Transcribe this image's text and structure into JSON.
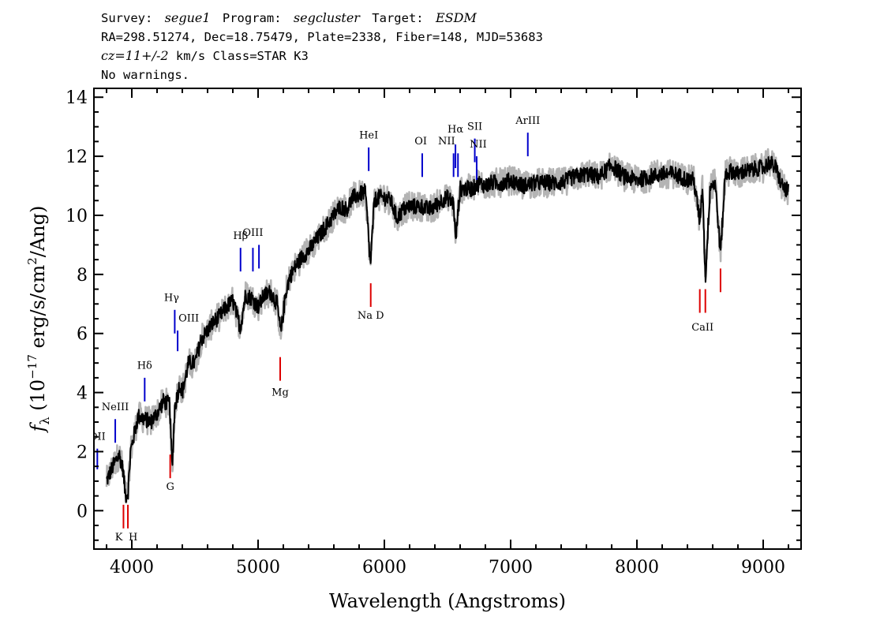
{
  "header": {
    "line1": {
      "survey_label": "Survey:",
      "survey_value": "segue1",
      "program_label": "Program:",
      "program_value": "segcluster",
      "target_label": "Target:",
      "target_value": "ESDM"
    },
    "line2": "RA=298.51274, Dec=18.75479, Plate=2338, Fiber=148, MJD=53683",
    "line3": {
      "cz_label": "cz=11+/-2",
      "rest": " km/s Class=STAR K3"
    },
    "line4": "No warnings."
  },
  "colors": {
    "spectrum": "#000000",
    "error_band": "#b4b4b4",
    "emission_line": "#0000cc",
    "absorption_line": "#dd0000"
  },
  "chart_data": {
    "type": "line",
    "xlabel": "Wavelength (Angstroms)",
    "ylabel": "f_λ (10^-17 erg/s/cm^2/Ang)",
    "ylabel_parts": {
      "f": "f",
      "sub": "λ",
      "pre": " (10",
      "exp1": "−17",
      "mid": " erg/s/cm",
      "exp2": "2",
      "post": "/Ang)"
    },
    "xlim": [
      3700,
      9300
    ],
    "ylim": [
      -1.3,
      14.3
    ],
    "x_ticks": [
      4000,
      5000,
      6000,
      7000,
      8000,
      9000
    ],
    "y_ticks": [
      0,
      2,
      4,
      6,
      8,
      10,
      12,
      14
    ],
    "grid": false,
    "legend": "none",
    "series": [
      {
        "x": [
          3800,
          3850,
          3900,
          3930,
          3950,
          3970,
          3990,
          4050,
          4100,
          4150,
          4200,
          4250,
          4300,
          4320,
          4340,
          4380,
          4400,
          4450,
          4500,
          4550,
          4600,
          4650,
          4700,
          4750,
          4800,
          4860,
          4900,
          4950,
          5000,
          5050,
          5100,
          5150,
          5180,
          5220,
          5250,
          5300,
          5350,
          5400,
          5450,
          5500,
          5550,
          5600,
          5650,
          5700,
          5750,
          5800,
          5850,
          5890,
          5920,
          5950,
          6000,
          6050,
          6100,
          6150,
          6200,
          6250,
          6300,
          6350,
          6400,
          6450,
          6500,
          6550,
          6563,
          6600,
          6650,
          6700,
          6750,
          6800,
          6850,
          6900,
          6950,
          7000,
          7050,
          7100,
          7200,
          7300,
          7400,
          7500,
          7600,
          7700,
          7800,
          7900,
          8000,
          8100,
          8200,
          8300,
          8400,
          8450,
          8498,
          8520,
          8542,
          8580,
          8620,
          8662,
          8700,
          8750,
          8800,
          8850,
          8900,
          8950,
          9000,
          9050,
          9100,
          9150,
          9200
        ],
        "values": [
          1.0,
          1.5,
          1.9,
          1.4,
          0.5,
          0.6,
          2.0,
          3.2,
          3.1,
          3.0,
          3.3,
          3.7,
          3.6,
          1.4,
          3.5,
          4.3,
          4.0,
          5.0,
          5.0,
          5.8,
          6.1,
          6.4,
          6.6,
          6.9,
          7.1,
          6.2,
          7.3,
          7.2,
          6.9,
          7.3,
          7.4,
          7.0,
          6.0,
          7.4,
          7.9,
          8.3,
          8.6,
          8.8,
          9.1,
          9.4,
          9.7,
          10.0,
          10.3,
          10.2,
          10.6,
          10.7,
          10.8,
          8.3,
          10.5,
          10.6,
          10.6,
          10.5,
          9.9,
          10.2,
          10.3,
          10.3,
          10.3,
          10.2,
          10.3,
          10.5,
          10.6,
          10.4,
          9.1,
          10.9,
          10.9,
          10.9,
          11.1,
          11.0,
          11.1,
          11.1,
          11.1,
          11.2,
          11.1,
          11.0,
          11.1,
          11.1,
          11.1,
          11.3,
          11.4,
          11.3,
          11.7,
          11.3,
          11.2,
          11.3,
          11.4,
          11.4,
          11.2,
          11.2,
          9.8,
          11.0,
          7.8,
          11.0,
          11.1,
          8.7,
          11.4,
          11.5,
          11.4,
          11.5,
          11.5,
          11.6,
          11.6,
          11.8,
          11.6,
          11.0,
          10.8
        ]
      }
    ],
    "line_markers": [
      {
        "label": "OII",
        "x": 3727,
        "color": "blue",
        "y1": 1.4,
        "y2": 2.1,
        "label_y": 2.4
      },
      {
        "label": "NeIII",
        "x": 3869,
        "color": "blue",
        "y1": 2.3,
        "y2": 3.1,
        "label_y": 3.4
      },
      {
        "label": "Hδ",
        "x": 4102,
        "color": "blue",
        "y1": 3.7,
        "y2": 4.5,
        "label_y": 4.8
      },
      {
        "label": "Hγ",
        "x": 4340,
        "color": "blue",
        "y1": 6.0,
        "y2": 6.8,
        "label_y": 7.1
      },
      {
        "label": "OIII",
        "x": 4363,
        "color": "blue",
        "y1": 5.4,
        "y2": 6.1,
        "label_y": 6.4
      },
      {
        "label": "Hβ",
        "x": 4861,
        "color": "blue",
        "y1": 8.1,
        "y2": 8.9,
        "label_y": 9.2
      },
      {
        "label": "OIII",
        "x": 4959,
        "color": "blue",
        "y1": 8.1,
        "y2": 8.9,
        "label_y": 9.3
      },
      {
        "label": "",
        "x": 5007,
        "color": "blue",
        "y1": 8.2,
        "y2": 9.0,
        "label_y": null
      },
      {
        "label": "HeI",
        "x": 5876,
        "color": "blue",
        "y1": 11.5,
        "y2": 12.3,
        "label_y": 12.6
      },
      {
        "label": "OI",
        "x": 6300,
        "color": "blue",
        "y1": 11.3,
        "y2": 12.1,
        "label_y": 12.4
      },
      {
        "label": "NII",
        "x": 6548,
        "color": "blue",
        "y1": 11.3,
        "y2": 12.1,
        "label_y": 12.4
      },
      {
        "label": "Hα",
        "x": 6563,
        "color": "blue",
        "y1": 11.6,
        "y2": 12.4,
        "label_y": 12.8
      },
      {
        "label": "",
        "x": 6583,
        "color": "blue",
        "y1": 11.3,
        "y2": 12.1,
        "label_y": null
      },
      {
        "label": "SII",
        "x": 6716,
        "color": "blue",
        "y1": 11.8,
        "y2": 12.6,
        "label_y": 12.9
      },
      {
        "label": "NII",
        "x": 6731,
        "color": "blue",
        "y1": 11.2,
        "y2": 12.0,
        "label_y": 12.3
      },
      {
        "label": "ArIII",
        "x": 7136,
        "color": "blue",
        "y1": 12.0,
        "y2": 12.8,
        "label_y": 13.1
      },
      {
        "label": "K",
        "x": 3934,
        "color": "red",
        "y1": -0.6,
        "y2": 0.2,
        "label_y": -1.0
      },
      {
        "label": "H",
        "x": 3969,
        "color": "red",
        "y1": -0.6,
        "y2": 0.2,
        "label_y": -1.0
      },
      {
        "label": "G",
        "x": 4304,
        "color": "red",
        "y1": 1.1,
        "y2": 1.9,
        "label_y": 0.7
      },
      {
        "label": "Mg",
        "x": 5175,
        "color": "red",
        "y1": 4.4,
        "y2": 5.2,
        "label_y": 3.9
      },
      {
        "label": "Na D",
        "x": 5892,
        "color": "red",
        "y1": 6.9,
        "y2": 7.7,
        "label_y": 6.5
      },
      {
        "label": "CaII",
        "x": 8498,
        "color": "red",
        "y1": 6.7,
        "y2": 7.5,
        "label_y": 6.1
      },
      {
        "label": "",
        "x": 8542,
        "color": "red",
        "y1": 6.7,
        "y2": 7.5,
        "label_y": null
      },
      {
        "label": "",
        "x": 8662,
        "color": "red",
        "y1": 7.4,
        "y2": 8.2,
        "label_y": null
      }
    ]
  }
}
